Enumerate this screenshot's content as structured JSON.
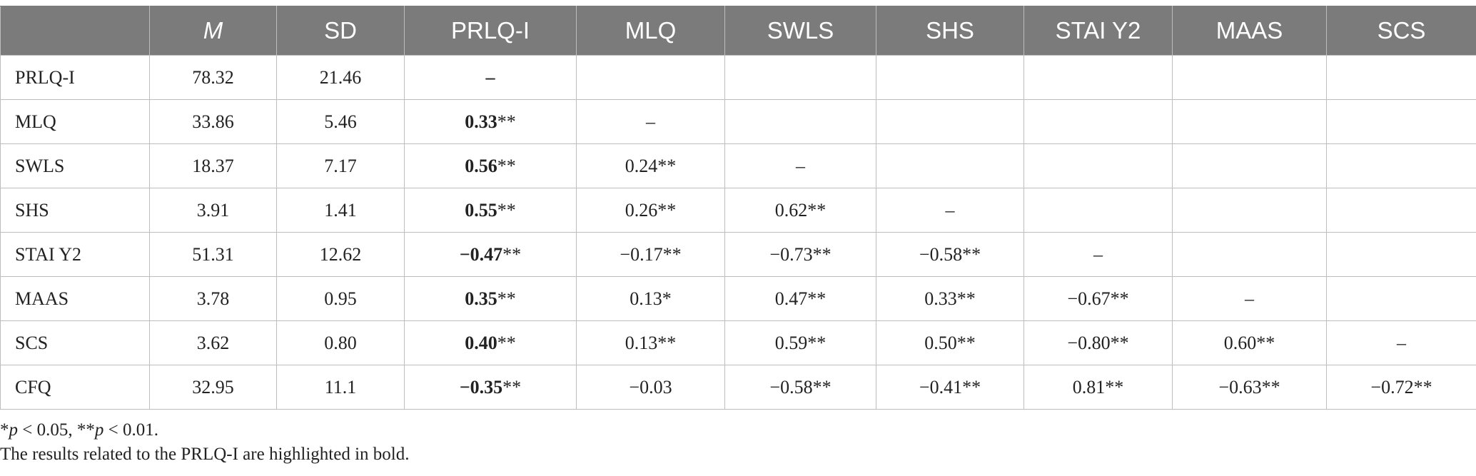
{
  "table": {
    "headers": [
      "",
      "M",
      "SD",
      "PRLQ-I",
      "MLQ",
      "SWLS",
      "SHS",
      "STAI Y2",
      "MAAS",
      "SCS"
    ],
    "rows": [
      {
        "label": "PRLQ-I",
        "m": "78.32",
        "sd": "21.46",
        "cells": [
          {
            "num": "–",
            "sig": ""
          },
          {
            "num": "",
            "sig": ""
          },
          {
            "num": "",
            "sig": ""
          },
          {
            "num": "",
            "sig": ""
          },
          {
            "num": "",
            "sig": ""
          },
          {
            "num": "",
            "sig": ""
          },
          {
            "num": "",
            "sig": ""
          }
        ]
      },
      {
        "label": "MLQ",
        "m": "33.86",
        "sd": "5.46",
        "cells": [
          {
            "num": "0.33",
            "sig": "**"
          },
          {
            "num": "–",
            "sig": ""
          },
          {
            "num": "",
            "sig": ""
          },
          {
            "num": "",
            "sig": ""
          },
          {
            "num": "",
            "sig": ""
          },
          {
            "num": "",
            "sig": ""
          },
          {
            "num": "",
            "sig": ""
          }
        ]
      },
      {
        "label": "SWLS",
        "m": "18.37",
        "sd": "7.17",
        "cells": [
          {
            "num": "0.56",
            "sig": "**"
          },
          {
            "num": "0.24",
            "sig": "**"
          },
          {
            "num": "–",
            "sig": ""
          },
          {
            "num": "",
            "sig": ""
          },
          {
            "num": "",
            "sig": ""
          },
          {
            "num": "",
            "sig": ""
          },
          {
            "num": "",
            "sig": ""
          }
        ]
      },
      {
        "label": "SHS",
        "m": "3.91",
        "sd": "1.41",
        "cells": [
          {
            "num": "0.55",
            "sig": "**"
          },
          {
            "num": "0.26",
            "sig": "**"
          },
          {
            "num": "0.62",
            "sig": "**"
          },
          {
            "num": "–",
            "sig": ""
          },
          {
            "num": "",
            "sig": ""
          },
          {
            "num": "",
            "sig": ""
          },
          {
            "num": "",
            "sig": ""
          }
        ]
      },
      {
        "label": "STAI Y2",
        "m": "51.31",
        "sd": "12.62",
        "cells": [
          {
            "num": "−0.47",
            "sig": "**"
          },
          {
            "num": "−0.17",
            "sig": "**"
          },
          {
            "num": "−0.73",
            "sig": "**"
          },
          {
            "num": "−0.58",
            "sig": "**"
          },
          {
            "num": "–",
            "sig": ""
          },
          {
            "num": "",
            "sig": ""
          },
          {
            "num": "",
            "sig": ""
          }
        ]
      },
      {
        "label": "MAAS",
        "m": "3.78",
        "sd": "0.95",
        "cells": [
          {
            "num": "0.35",
            "sig": "**"
          },
          {
            "num": "0.13",
            "sig": "*"
          },
          {
            "num": "0.47",
            "sig": "**"
          },
          {
            "num": "0.33",
            "sig": "**"
          },
          {
            "num": "−0.67",
            "sig": "**"
          },
          {
            "num": "–",
            "sig": ""
          },
          {
            "num": "",
            "sig": ""
          }
        ]
      },
      {
        "label": "SCS",
        "m": "3.62",
        "sd": "0.80",
        "cells": [
          {
            "num": "0.40",
            "sig": "**"
          },
          {
            "num": "0.13",
            "sig": "**"
          },
          {
            "num": "0.59",
            "sig": "**"
          },
          {
            "num": "0.50",
            "sig": "**"
          },
          {
            "num": "−0.80",
            "sig": "**"
          },
          {
            "num": "0.60",
            "sig": "**"
          },
          {
            "num": "–",
            "sig": ""
          }
        ]
      },
      {
        "label": "CFQ",
        "m": "32.95",
        "sd": "11.1",
        "cells": [
          {
            "num": "−0.35",
            "sig": "**"
          },
          {
            "num": "−0.03",
            "sig": ""
          },
          {
            "num": "−0.58",
            "sig": "**"
          },
          {
            "num": "−0.41",
            "sig": "**"
          },
          {
            "num": "0.81",
            "sig": "**"
          },
          {
            "num": "−0.63",
            "sig": "**"
          },
          {
            "num": "−0.72",
            "sig": "**"
          }
        ]
      }
    ]
  },
  "notes": {
    "sig_a_star": "*",
    "sig_a_p": "p",
    "sig_a_rest": " < 0.05, **",
    "sig_b_p": "p",
    "sig_b_rest": " < 0.01.",
    "bold_note": "The results related to the PRLQ-I are highlighted in bold."
  }
}
